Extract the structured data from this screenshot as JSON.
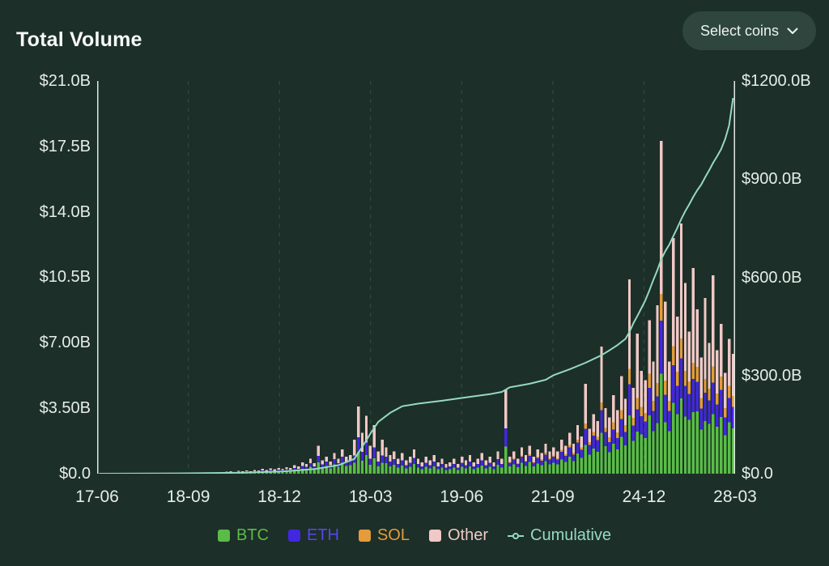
{
  "header": {
    "title": "Total Volume",
    "select_coins_label": "Select coins"
  },
  "colors": {
    "background": "#1c2f28",
    "button_bg": "#2e463e",
    "btc": "#5abc47",
    "eth": "#4227e0",
    "sol": "#e59b3b",
    "other": "#f0c8c6",
    "cumulative": "#96d9c1",
    "grid": "#3a4c44",
    "axis_line": "#dfe8e3",
    "text": "#e9efec"
  },
  "chart_data": {
    "type": "bar",
    "stacked": true,
    "title": "Total Volume",
    "left_axis": {
      "ticks": [
        "$21.0B",
        "$17.5B",
        "$14.0B",
        "$10.5B",
        "$7.00B",
        "$3.50B",
        "$0.0"
      ],
      "max": 21,
      "unit": "$B daily volume"
    },
    "right_axis": {
      "ticks": [
        "$1200.0B",
        "$900.0B",
        "$600.0B",
        "$300.0B",
        "$0.0"
      ],
      "max": 1200,
      "unit": "$B cumulative"
    },
    "x_ticks": [
      "17-06",
      "18-09",
      "18-12",
      "18-03",
      "19-06",
      "21-09",
      "24-12",
      "28-03"
    ],
    "legend": [
      {
        "label": "BTC",
        "color": "#5abc47"
      },
      {
        "label": "ETH",
        "color": "#4227e0"
      },
      {
        "label": "SOL",
        "color": "#e59b3b"
      },
      {
        "label": "Other",
        "color": "#f0c8c6"
      },
      {
        "label": "Cumulative",
        "color": "#96d9c1"
      }
    ],
    "series_names": [
      "BTC",
      "ETH",
      "SOL",
      "Other"
    ],
    "bars": [
      [
        0.01,
        0.01,
        0,
        0.01
      ],
      [
        0.01,
        0.01,
        0,
        0.01
      ],
      [
        0.01,
        0.01,
        0,
        0.01
      ],
      [
        0.01,
        0.01,
        0,
        0.01
      ],
      [
        0.01,
        0.01,
        0,
        0.01
      ],
      [
        0.01,
        0.01,
        0,
        0.01
      ],
      [
        0.01,
        0.01,
        0,
        0.01
      ],
      [
        0.01,
        0.01,
        0,
        0.01
      ],
      [
        0.02,
        0.01,
        0,
        0.01
      ],
      [
        0.02,
        0.01,
        0,
        0.01
      ],
      [
        0.02,
        0.01,
        0,
        0.01
      ],
      [
        0.02,
        0.01,
        0,
        0.01
      ],
      [
        0.02,
        0.01,
        0,
        0.01
      ],
      [
        0.02,
        0.01,
        0,
        0.01
      ],
      [
        0.02,
        0.01,
        0,
        0.01
      ],
      [
        0.02,
        0.01,
        0,
        0.01
      ],
      [
        0.02,
        0.01,
        0,
        0.02
      ],
      [
        0.02,
        0.01,
        0,
        0.02
      ],
      [
        0.02,
        0.01,
        0,
        0.02
      ],
      [
        0.02,
        0.01,
        0,
        0.02
      ],
      [
        0.02,
        0.01,
        0,
        0.02
      ],
      [
        0.02,
        0.01,
        0,
        0.02
      ],
      [
        0.02,
        0.01,
        0,
        0.02
      ],
      [
        0.02,
        0.01,
        0,
        0.02
      ],
      [
        0.03,
        0.02,
        0,
        0.02
      ],
      [
        0.03,
        0.02,
        0,
        0.02
      ],
      [
        0.03,
        0.02,
        0,
        0.02
      ],
      [
        0.03,
        0.02,
        0,
        0.02
      ],
      [
        0.03,
        0.02,
        0,
        0.02
      ],
      [
        0.03,
        0.02,
        0,
        0.02
      ],
      [
        0.03,
        0.02,
        0,
        0.02
      ],
      [
        0.03,
        0.02,
        0,
        0.02
      ],
      [
        0.05,
        0.03,
        0,
        0.03
      ],
      [
        0.05,
        0.03,
        0,
        0.04
      ],
      [
        0.04,
        0.02,
        0,
        0.03
      ],
      [
        0.07,
        0.04,
        0,
        0.04
      ],
      [
        0.06,
        0.03,
        0,
        0.04
      ],
      [
        0.08,
        0.05,
        0,
        0.05
      ],
      [
        0.06,
        0.04,
        0,
        0.04
      ],
      [
        0.09,
        0.05,
        0,
        0.06
      ],
      [
        0.08,
        0.04,
        0,
        0.05
      ],
      [
        0.11,
        0.06,
        0,
        0.08
      ],
      [
        0.09,
        0.05,
        0,
        0.06
      ],
      [
        0.13,
        0.07,
        0,
        0.08
      ],
      [
        0.1,
        0.06,
        0,
        0.07
      ],
      [
        0.14,
        0.08,
        0,
        0.09
      ],
      [
        0.12,
        0.07,
        0,
        0.08
      ],
      [
        0.15,
        0.09,
        0,
        0.1
      ],
      [
        0.14,
        0.08,
        0,
        0.09
      ],
      [
        0.2,
        0.11,
        0,
        0.14
      ],
      [
        0.17,
        0.1,
        0,
        0.11
      ],
      [
        0.27,
        0.15,
        0,
        0.18
      ],
      [
        0.23,
        0.13,
        0,
        0.15
      ],
      [
        0.36,
        0.2,
        0,
        0.24
      ],
      [
        0.25,
        0.14,
        0,
        0.17
      ],
      [
        0.6,
        0.35,
        0,
        0.55
      ],
      [
        0.32,
        0.18,
        0,
        0.21
      ],
      [
        0.41,
        0.23,
        0,
        0.27
      ],
      [
        0.29,
        0.16,
        0,
        0.2
      ],
      [
        0.5,
        0.28,
        0,
        0.33
      ],
      [
        0.36,
        0.2,
        0,
        0.24
      ],
      [
        0.59,
        0.33,
        0,
        0.39
      ],
      [
        0.41,
        0.23,
        0,
        0.27
      ],
      [
        0.45,
        0.25,
        0,
        0.3
      ],
      [
        0.58,
        0.4,
        0,
        0.83
      ],
      [
        1.15,
        0.79,
        0,
        1.66
      ],
      [
        0.7,
        0.48,
        0,
        1.01
      ],
      [
        0.99,
        0.68,
        0,
        1.43
      ],
      [
        0.48,
        0.33,
        0,
        0.69
      ],
      [
        0.83,
        0.57,
        0,
        1.2
      ],
      [
        0.38,
        0.26,
        0,
        0.55
      ],
      [
        0.58,
        0.4,
        0,
        0.83
      ],
      [
        0.56,
        0.35,
        0,
        0.49
      ],
      [
        0.4,
        0.25,
        0,
        0.35
      ],
      [
        0.48,
        0.3,
        0,
        0.42
      ],
      [
        0.32,
        0.2,
        0,
        0.28
      ],
      [
        0.44,
        0.28,
        0,
        0.39
      ],
      [
        0.28,
        0.18,
        0,
        0.25
      ],
      [
        0.36,
        0.23,
        0,
        0.32
      ],
      [
        0.52,
        0.33,
        0,
        0.46
      ],
      [
        0.32,
        0.2,
        0,
        0.28
      ],
      [
        0.24,
        0.15,
        0,
        0.21
      ],
      [
        0.36,
        0.23,
        0,
        0.32
      ],
      [
        0.28,
        0.18,
        0,
        0.25
      ],
      [
        0.4,
        0.25,
        0,
        0.35
      ],
      [
        0.24,
        0.15,
        0,
        0.21
      ],
      [
        0.32,
        0.2,
        0,
        0.28
      ],
      [
        0.2,
        0.13,
        0,
        0.18
      ],
      [
        0.24,
        0.15,
        0,
        0.21
      ],
      [
        0.32,
        0.2,
        0,
        0.28
      ],
      [
        0.2,
        0.13,
        0,
        0.18
      ],
      [
        0.36,
        0.23,
        0,
        0.32
      ],
      [
        0.28,
        0.18,
        0,
        0.25
      ],
      [
        0.4,
        0.25,
        0,
        0.35
      ],
      [
        0.24,
        0.15,
        0,
        0.21
      ],
      [
        0.32,
        0.2,
        0,
        0.28
      ],
      [
        0.44,
        0.28,
        0,
        0.39
      ],
      [
        0.28,
        0.18,
        0,
        0.25
      ],
      [
        0.36,
        0.23,
        0,
        0.32
      ],
      [
        0.24,
        0.15,
        0,
        0.21
      ],
      [
        0.48,
        0.3,
        0,
        0.42
      ],
      [
        0.32,
        0.2,
        0,
        0.28
      ],
      [
        1.44,
        0.99,
        0,
        2.07
      ],
      [
        0.38,
        0.2,
        0.05,
        0.27
      ],
      [
        0.5,
        0.26,
        0.07,
        0.36
      ],
      [
        0.34,
        0.18,
        0.05,
        0.24
      ],
      [
        0.59,
        0.31,
        0.08,
        0.42
      ],
      [
        0.42,
        0.22,
        0.06,
        0.3
      ],
      [
        0.63,
        0.33,
        0.09,
        0.45
      ],
      [
        0.38,
        0.2,
        0.05,
        0.27
      ],
      [
        0.55,
        0.29,
        0.08,
        0.39
      ],
      [
        0.46,
        0.24,
        0.07,
        0.33
      ],
      [
        0.67,
        0.35,
        0.1,
        0.48
      ],
      [
        0.5,
        0.26,
        0.07,
        0.36
      ],
      [
        0.59,
        0.31,
        0.08,
        0.42
      ],
      [
        0.5,
        0.26,
        0.07,
        0.36
      ],
      [
        0.76,
        0.4,
        0.11,
        0.54
      ],
      [
        0.63,
        0.33,
        0.09,
        0.45
      ],
      [
        0.92,
        0.48,
        0.13,
        0.66
      ],
      [
        0.67,
        0.35,
        0.1,
        0.48
      ],
      [
        1.09,
        0.57,
        0.16,
        0.78
      ],
      [
        0.84,
        0.44,
        0.12,
        0.6
      ],
      [
        1.54,
        0.86,
        0.29,
        2.11
      ],
      [
        1.01,
        0.53,
        0.14,
        0.72
      ],
      [
        1.34,
        0.7,
        0.19,
        0.96
      ],
      [
        1.18,
        0.62,
        0.17,
        0.84
      ],
      [
        2.18,
        1.22,
        0.41,
        2.99
      ],
      [
        1.47,
        0.77,
        0.21,
        1.05
      ],
      [
        1.14,
        0.54,
        0.27,
        1.05
      ],
      [
        1.6,
        0.76,
        0.38,
        1.47
      ],
      [
        1.29,
        0.61,
        0.31,
        1.19
      ],
      [
        1.98,
        0.94,
        0.47,
        1.82
      ],
      [
        1.52,
        0.72,
        0.36,
        1.4
      ],
      [
        3.12,
        1.66,
        0.83,
        4.78
      ],
      [
        1.75,
        0.83,
        0.41,
        1.61
      ],
      [
        2.25,
        1.2,
        0.6,
        3.45
      ],
      [
        2.09,
        0.99,
        0.5,
        1.93
      ],
      [
        1.9,
        0.9,
        0.45,
        1.75
      ],
      [
        3.12,
        1.48,
        0.74,
        2.87
      ],
      [
        2.28,
        1.08,
        0.54,
        2.1
      ],
      [
        2.7,
        1.44,
        0.72,
        4.14
      ],
      [
        5.34,
        2.85,
        1.42,
        8.19
      ],
      [
        2.76,
        1.47,
        0.74,
        4.23
      ],
      [
        2.28,
        1.08,
        0.54,
        2.1
      ],
      [
        3.78,
        2.02,
        1.01,
        5.8
      ],
      [
        3.19,
        1.51,
        0.76,
        2.94
      ],
      [
        4.02,
        2.14,
        1.07,
        6.16
      ],
      [
        3.06,
        1.63,
        0.82,
        4.69
      ],
      [
        2.89,
        1.37,
        0.68,
        2.66
      ],
      [
        3.3,
        1.76,
        0.88,
        5.06
      ],
      [
        3.34,
        1.58,
        0.79,
        3.08
      ],
      [
        2.36,
        1.12,
        0.56,
        2.17
      ],
      [
        2.82,
        1.5,
        0.75,
        4.32
      ],
      [
        2.66,
        1.26,
        0.63,
        2.45
      ],
      [
        3.18,
        1.7,
        0.85,
        4.88
      ],
      [
        2.51,
        1.19,
        0.59,
        2.31
      ],
      [
        3.04,
        1.44,
        0.72,
        2.8
      ],
      [
        2.05,
        0.97,
        0.49,
        1.89
      ],
      [
        2.74,
        1.3,
        0.65,
        2.52
      ],
      [
        2.43,
        1.15,
        0.58,
        2.24
      ]
    ],
    "cumulative": {
      "name": "Cumulative",
      "points": [
        [
          0,
          0
        ],
        [
          20,
          1
        ],
        [
          36,
          3
        ],
        [
          46,
          7
        ],
        [
          54,
          14
        ],
        [
          60,
          26
        ],
        [
          64,
          45
        ],
        [
          66,
          82
        ],
        [
          68,
          122
        ],
        [
          70,
          158
        ],
        [
          73,
          186
        ],
        [
          76,
          206
        ],
        [
          80,
          214
        ],
        [
          86,
          223
        ],
        [
          92,
          233
        ],
        [
          98,
          243
        ],
        [
          101,
          250
        ],
        [
          103,
          264
        ],
        [
          108,
          275
        ],
        [
          112,
          287
        ],
        [
          114,
          301
        ],
        [
          118,
          319
        ],
        [
          122,
          339
        ],
        [
          126,
          362
        ],
        [
          128,
          377
        ],
        [
          130,
          393
        ],
        [
          132,
          412
        ],
        [
          133,
          433
        ],
        [
          134,
          460
        ],
        [
          135,
          482
        ],
        [
          136,
          506
        ],
        [
          137,
          530
        ],
        [
          138,
          560
        ],
        [
          139,
          592
        ],
        [
          140,
          622
        ],
        [
          141,
          656
        ],
        [
          142,
          680
        ],
        [
          143,
          700
        ],
        [
          144,
          726
        ],
        [
          145,
          751
        ],
        [
          146,
          778
        ],
        [
          147,
          802
        ],
        [
          148,
          823
        ],
        [
          149,
          846
        ],
        [
          150,
          866
        ],
        [
          151,
          883
        ],
        [
          152,
          906
        ],
        [
          153,
          927
        ],
        [
          154,
          950
        ],
        [
          155,
          970
        ],
        [
          156,
          992
        ],
        [
          157,
          1022
        ],
        [
          158,
          1064
        ],
        [
          159,
          1148
        ]
      ]
    }
  }
}
